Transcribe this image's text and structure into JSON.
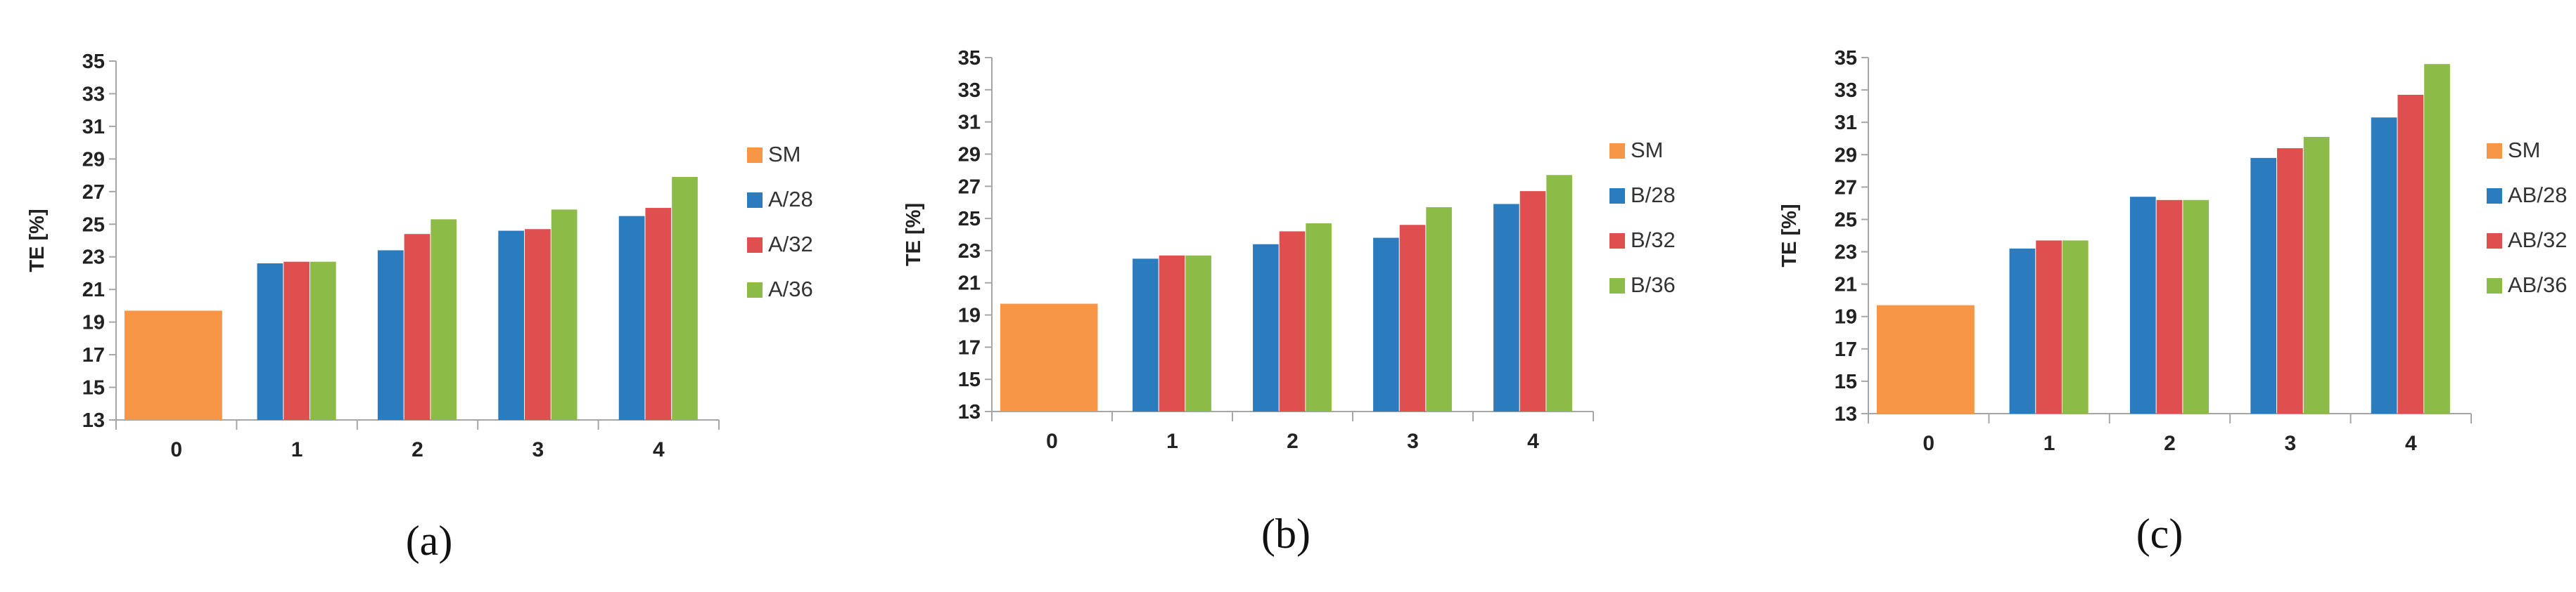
{
  "colors": {
    "SM": "#F79646",
    "s28": "#2B7BBF",
    "s32": "#E04F4F",
    "s36": "#8DBB48",
    "axis": "#A6A6A6"
  },
  "chart_data": [
    {
      "type": "bar",
      "panel_label": "(a)",
      "ylabel": "TE [%]",
      "ylim": [
        13,
        35
      ],
      "yticks": [
        "13",
        "15",
        "17",
        "19",
        "21",
        "23",
        "25",
        "27",
        "29",
        "31",
        "33",
        "35"
      ],
      "categories": [
        "0",
        "1",
        "2",
        "3",
        "4"
      ],
      "baseline": {
        "name": "SM",
        "category": "0",
        "value": 19.7
      },
      "series": [
        {
          "name": "A/28",
          "values": [
            null,
            22.6,
            23.4,
            24.6,
            25.5
          ]
        },
        {
          "name": "A/32",
          "values": [
            null,
            22.7,
            24.4,
            24.7,
            26.0
          ]
        },
        {
          "name": "A/36",
          "values": [
            null,
            22.7,
            25.3,
            25.9,
            27.9
          ]
        }
      ],
      "legend": [
        "SM",
        "A/28",
        "A/32",
        "A/36"
      ],
      "legend_position": "right"
    },
    {
      "type": "bar",
      "panel_label": "(b)",
      "ylabel": "TE [%]",
      "ylim": [
        13,
        35
      ],
      "yticks": [
        "13",
        "15",
        "17",
        "19",
        "21",
        "23",
        "25",
        "27",
        "29",
        "31",
        "33",
        "35"
      ],
      "categories": [
        "0",
        "1",
        "2",
        "3",
        "4"
      ],
      "baseline": {
        "name": "SM",
        "category": "0",
        "value": 19.7
      },
      "series": [
        {
          "name": "B/28",
          "values": [
            null,
            22.5,
            23.4,
            23.8,
            25.9
          ]
        },
        {
          "name": "B/32",
          "values": [
            null,
            22.7,
            24.2,
            24.6,
            26.7
          ]
        },
        {
          "name": "B/36",
          "values": [
            null,
            22.7,
            24.7,
            25.7,
            27.7
          ]
        }
      ],
      "legend": [
        "SM",
        "B/28",
        "B/32",
        "B/36"
      ],
      "legend_position": "right"
    },
    {
      "type": "bar",
      "panel_label": "(c)",
      "ylabel": "TE [%]",
      "ylim": [
        13,
        35
      ],
      "yticks": [
        "13",
        "15",
        "17",
        "19",
        "21",
        "23",
        "25",
        "27",
        "29",
        "31",
        "33",
        "35"
      ],
      "categories": [
        "0",
        "1",
        "2",
        "3",
        "4"
      ],
      "baseline": {
        "name": "SM",
        "category": "0",
        "value": 19.7
      },
      "series": [
        {
          "name": "AB/28",
          "values": [
            null,
            23.2,
            26.4,
            28.8,
            31.3
          ]
        },
        {
          "name": "AB/32",
          "values": [
            null,
            23.7,
            26.2,
            29.4,
            32.7
          ]
        },
        {
          "name": "AB/36",
          "values": [
            null,
            23.7,
            26.2,
            30.1,
            34.6
          ]
        }
      ],
      "legend": [
        "SM",
        "AB/28",
        "AB/32",
        "AB/36"
      ],
      "legend_position": "right"
    }
  ]
}
